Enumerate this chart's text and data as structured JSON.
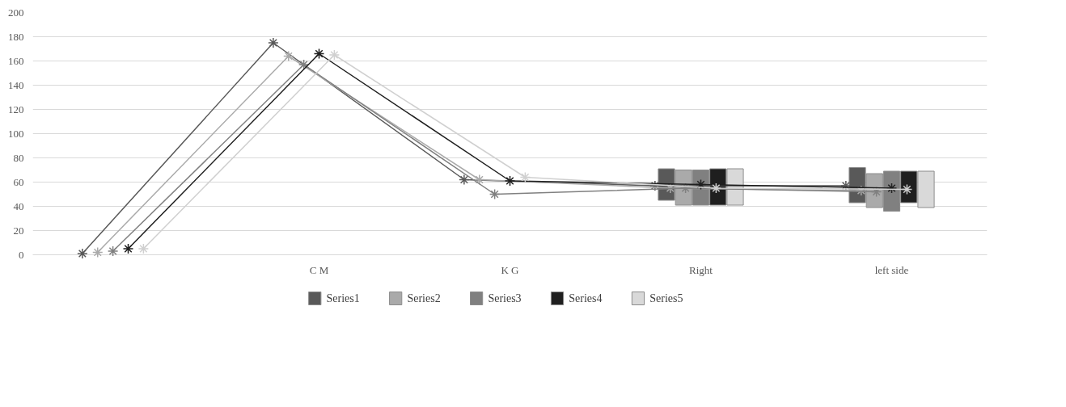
{
  "chart_data": {
    "type": "line",
    "categories": [
      null,
      "C M",
      "K G",
      "Right",
      "left side"
    ],
    "series": [
      {
        "color": "#595959",
        "values": [
          1,
          175,
          62,
          57,
          57
        ]
      },
      {
        "color": "#aaaaaa",
        "values": [
          2,
          164,
          62,
          55,
          53
        ]
      },
      {
        "color": "#808080",
        "values": [
          3,
          157,
          50,
          55,
          52
        ]
      },
      {
        "color": "#1f1f1f",
        "values": [
          5,
          166,
          61,
          58,
          55
        ]
      },
      {
        "color": "#d0d0d0",
        "values": [
          5,
          165,
          64,
          55,
          54
        ]
      },
      {
        "type": "bar",
        "name": "Series1",
        "color": "#595959",
        "values": [
          null,
          null,
          null,
          26,
          29
        ],
        "base": [
          null,
          null,
          null,
          45,
          43
        ]
      },
      {
        "type": "bar",
        "name": "Series2",
        "color": "#aaaaaa",
        "values": [
          null,
          null,
          null,
          29,
          28
        ],
        "base": [
          null,
          null,
          null,
          41,
          39
        ]
      },
      {
        "type": "bar",
        "name": "Series3",
        "color": "#808080",
        "values": [
          null,
          null,
          null,
          29,
          33
        ],
        "base": [
          null,
          null,
          null,
          41,
          36
        ]
      },
      {
        "type": "bar",
        "name": "Series4",
        "color": "#1f1f1f",
        "values": [
          null,
          null,
          null,
          30,
          26
        ],
        "base": [
          null,
          null,
          null,
          41,
          43
        ]
      },
      {
        "type": "bar",
        "name": "Series5",
        "color": "#d9d9d9",
        "values": [
          null,
          null,
          null,
          30,
          30
        ],
        "base": [
          null,
          null,
          null,
          41,
          39
        ]
      }
    ],
    "ylim": [
      0,
      200
    ],
    "yticks": [
      0,
      20,
      40,
      60,
      80,
      100,
      120,
      140,
      160,
      180,
      200
    ],
    "grid": "y",
    "legend": "bottom",
    "marker": "cross",
    "line_style": "solid"
  }
}
